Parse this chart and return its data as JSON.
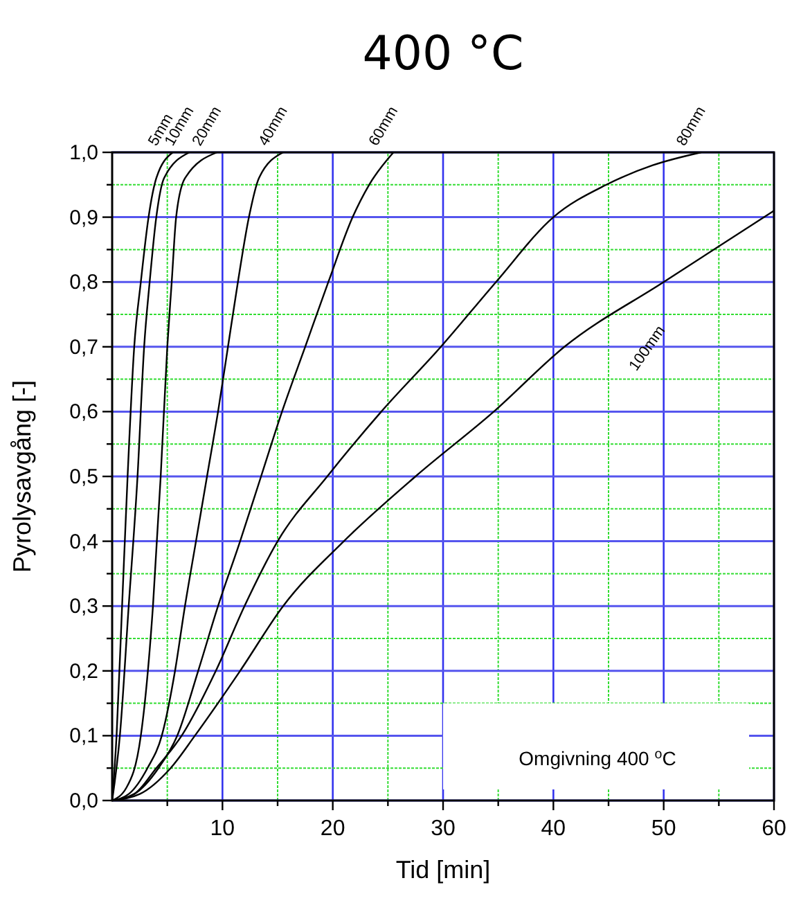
{
  "chart_data": {
    "type": "line",
    "title": "400 °C",
    "xlabel": "Tid [min]",
    "ylabel": "Pyrolysavgång [-]",
    "xlim": [
      0,
      60
    ],
    "ylim": [
      0,
      1
    ],
    "xticks": [
      {
        "value": 5,
        "label": null
      },
      10,
      {
        "value": 15,
        "label": null
      },
      20,
      {
        "value": 25,
        "label": null
      },
      30,
      {
        "value": 35,
        "label": null
      },
      40,
      {
        "value": 45,
        "label": null
      },
      50,
      {
        "value": 55,
        "label": null
      },
      60
    ],
    "yticks": [
      {
        "value": 0,
        "label": "0,0"
      },
      {
        "value": 0.05,
        "label": null
      },
      {
        "value": 0.1,
        "label": "0,1"
      },
      {
        "value": 0.15,
        "label": null
      },
      {
        "value": 0.2,
        "label": "0,2"
      },
      {
        "value": 0.25,
        "label": null
      },
      {
        "value": 0.3,
        "label": "0,3"
      },
      {
        "value": 0.35,
        "label": null
      },
      {
        "value": 0.4,
        "label": "0,4"
      },
      {
        "value": 0.45,
        "label": null
      },
      {
        "value": 0.5,
        "label": "0,5"
      },
      {
        "value": 0.55,
        "label": null
      },
      {
        "value": 0.6,
        "label": "0,6"
      },
      {
        "value": 0.65,
        "label": null
      },
      {
        "value": 0.7,
        "label": "0,7"
      },
      {
        "value": 0.75,
        "label": null
      },
      {
        "value": 0.8,
        "label": "0,8"
      },
      {
        "value": 0.85,
        "label": null
      },
      {
        "value": 0.9,
        "label": "0,9"
      },
      {
        "value": 0.95,
        "label": null
      },
      {
        "value": 1,
        "label": "1,0"
      }
    ],
    "grid": true,
    "marker": "none",
    "line_style": "solid",
    "annotations": [
      "Omgivning 400 $^{o}$C"
    ],
    "series": [
      {
        "name": "5mm",
        "color": "#000000",
        "x": [
          0,
          0.4,
          0.9,
          1.4,
          2.0,
          2.6,
          3.3,
          4.0,
          5.5
        ],
        "values": [
          0,
          0.1,
          0.3,
          0.5,
          0.7,
          0.8,
          0.9,
          0.96,
          1
        ]
      },
      {
        "name": "10mm",
        "color": "#000000",
        "x": [
          0,
          0.7,
          1.5,
          2.3,
          2.9,
          3.4,
          4.0,
          4.7,
          7.0
        ],
        "values": [
          0,
          0.1,
          0.3,
          0.5,
          0.7,
          0.8,
          0.9,
          0.96,
          1
        ]
      },
      {
        "name": "20mm",
        "color": "#000000",
        "x": [
          0,
          1.3,
          2.6,
          3.7,
          4.4,
          5.0,
          5.4,
          5.8,
          6.6,
          9.5
        ],
        "values": [
          0,
          0.02,
          0.1,
          0.3,
          0.5,
          0.7,
          0.8,
          0.9,
          0.96,
          1
        ]
      },
      {
        "name": "40mm",
        "color": "#000000",
        "x": [
          0,
          1.5,
          3.2,
          4.5,
          5.7,
          6.6,
          7.6,
          8.6,
          9.6,
          10.5,
          11.4,
          12.4,
          13.3,
          15.5
        ],
        "values": [
          0,
          0.01,
          0.05,
          0.1,
          0.2,
          0.3,
          0.4,
          0.5,
          0.6,
          0.7,
          0.8,
          0.9,
          0.96,
          1
        ]
      },
      {
        "name": "60mm",
        "color": "#000000",
        "x": [
          0,
          2,
          4.2,
          5.9,
          7.8,
          9.6,
          11.6,
          13.5,
          15.4,
          17.5,
          19.6,
          21.8,
          23.3,
          25.5
        ],
        "values": [
          0,
          0.01,
          0.05,
          0.1,
          0.2,
          0.3,
          0.4,
          0.5,
          0.6,
          0.7,
          0.8,
          0.9,
          0.95,
          1
        ]
      },
      {
        "name": "80mm",
        "color": "#000000",
        "x": [
          0,
          2,
          4,
          6.3,
          9.4,
          12,
          15,
          19.5,
          24.4,
          29.8,
          34.8,
          40,
          44.8,
          49,
          53.4
        ],
        "values": [
          0,
          0.01,
          0.05,
          0.1,
          0.2,
          0.3,
          0.4,
          0.5,
          0.6,
          0.7,
          0.8,
          0.9,
          0.95,
          0.98,
          1
        ]
      },
      {
        "name": "100mm",
        "color": "#000000",
        "x": [
          0,
          2.5,
          5.3,
          7.5,
          11.6,
          15.5,
          21,
          27.5,
          34.6,
          41,
          50,
          60
        ],
        "values": [
          0,
          0.01,
          0.05,
          0.1,
          0.2,
          0.3,
          0.4,
          0.5,
          0.6,
          0.7,
          0.8,
          0.91
        ]
      }
    ]
  }
}
